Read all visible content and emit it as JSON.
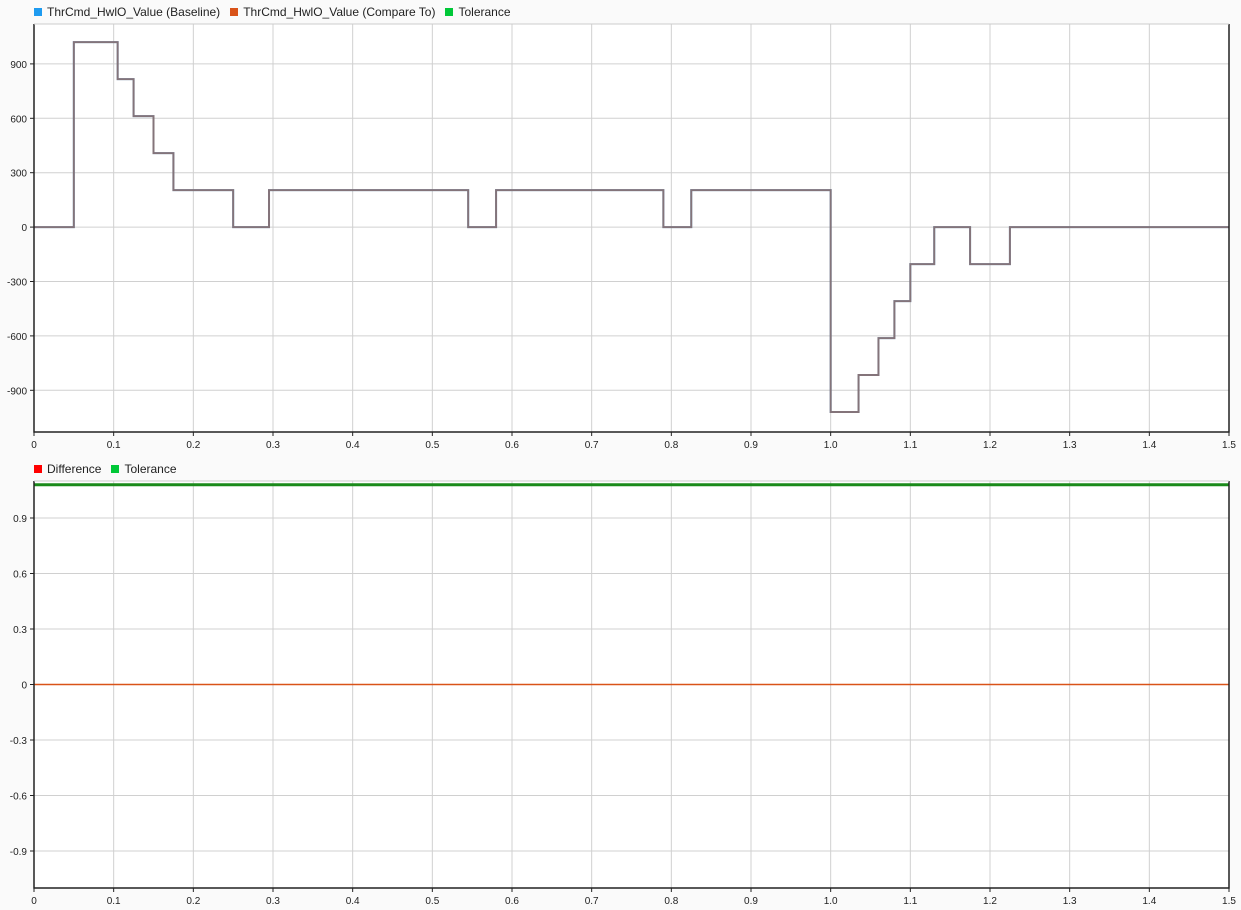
{
  "chart_data": [
    {
      "type": "line",
      "step": true,
      "legend": [
        {
          "name": "ThrCmd_HwlO_Value (Baseline)",
          "color": "#1e9bf0"
        },
        {
          "name": "ThrCmd_HwlO_Value (Compare To)",
          "color": "#d95319"
        },
        {
          "name": "Tolerance",
          "color": "#00c838"
        }
      ],
      "legend_placement": "top-left",
      "xlim": [
        0,
        1.5
      ],
      "ylim": [
        -1130,
        1120
      ],
      "xticks": [
        "0",
        "0.1",
        "0.2",
        "0.3",
        "0.4",
        "0.5",
        "0.6",
        "0.7",
        "0.8",
        "0.9",
        "1.0",
        "1.1",
        "1.2",
        "1.3",
        "1.4",
        "1.5"
      ],
      "yticks": [
        "-900",
        "-600",
        "-300",
        "0",
        "300",
        "600",
        "900"
      ],
      "grid": true,
      "series": [
        {
          "name": "ThrCmd_HwlO_Value (Baseline)",
          "x": [
            0,
            0.05,
            0.105,
            0.125,
            0.15,
            0.175,
            0.25,
            0.295,
            0.545,
            0.58,
            0.79,
            0.825,
            1.0,
            1.035,
            1.06,
            1.08,
            1.1,
            1.13,
            1.175,
            1.225,
            1.5
          ],
          "y": [
            0,
            1020,
            816,
            612,
            408,
            204,
            0,
            204,
            0,
            204,
            0,
            204,
            -1020,
            -816,
            -612,
            -408,
            -204,
            0,
            -204,
            0,
            0
          ]
        },
        {
          "name": "ThrCmd_HwlO_Value (Compare To)",
          "x": [
            0,
            0.05,
            0.105,
            0.125,
            0.15,
            0.175,
            0.25,
            0.295,
            0.545,
            0.58,
            0.79,
            0.825,
            1.0,
            1.035,
            1.06,
            1.08,
            1.1,
            1.13,
            1.175,
            1.225,
            1.5
          ],
          "y": [
            0,
            1020,
            816,
            612,
            408,
            204,
            0,
            204,
            0,
            204,
            0,
            204,
            -1020,
            -816,
            -612,
            -408,
            -204,
            0,
            -204,
            0,
            0
          ]
        }
      ]
    },
    {
      "type": "line",
      "step": true,
      "legend": [
        {
          "name": "Difference",
          "color": "#ff0000"
        },
        {
          "name": "Tolerance",
          "color": "#00c838"
        }
      ],
      "legend_placement": "top-left",
      "xlim": [
        0,
        1.5
      ],
      "ylim": [
        -1.1,
        1.1
      ],
      "xticks": [
        "0",
        "0.1",
        "0.2",
        "0.3",
        "0.4",
        "0.5",
        "0.6",
        "0.7",
        "0.8",
        "0.9",
        "1.0",
        "1.1",
        "1.2",
        "1.3",
        "1.4",
        "1.5"
      ],
      "yticks": [
        "-0.9",
        "-0.6",
        "-0.3",
        "0",
        "0.3",
        "0.6",
        "0.9"
      ],
      "grid": true,
      "series": [
        {
          "name": "Difference",
          "x": [
            0,
            1.5
          ],
          "y": [
            0,
            0
          ],
          "color": "#d95319"
        },
        {
          "name": "Tolerance",
          "x": [
            0,
            1.5
          ],
          "y": [
            1.08,
            1.08
          ],
          "color": "#1a8a1a"
        }
      ]
    }
  ]
}
